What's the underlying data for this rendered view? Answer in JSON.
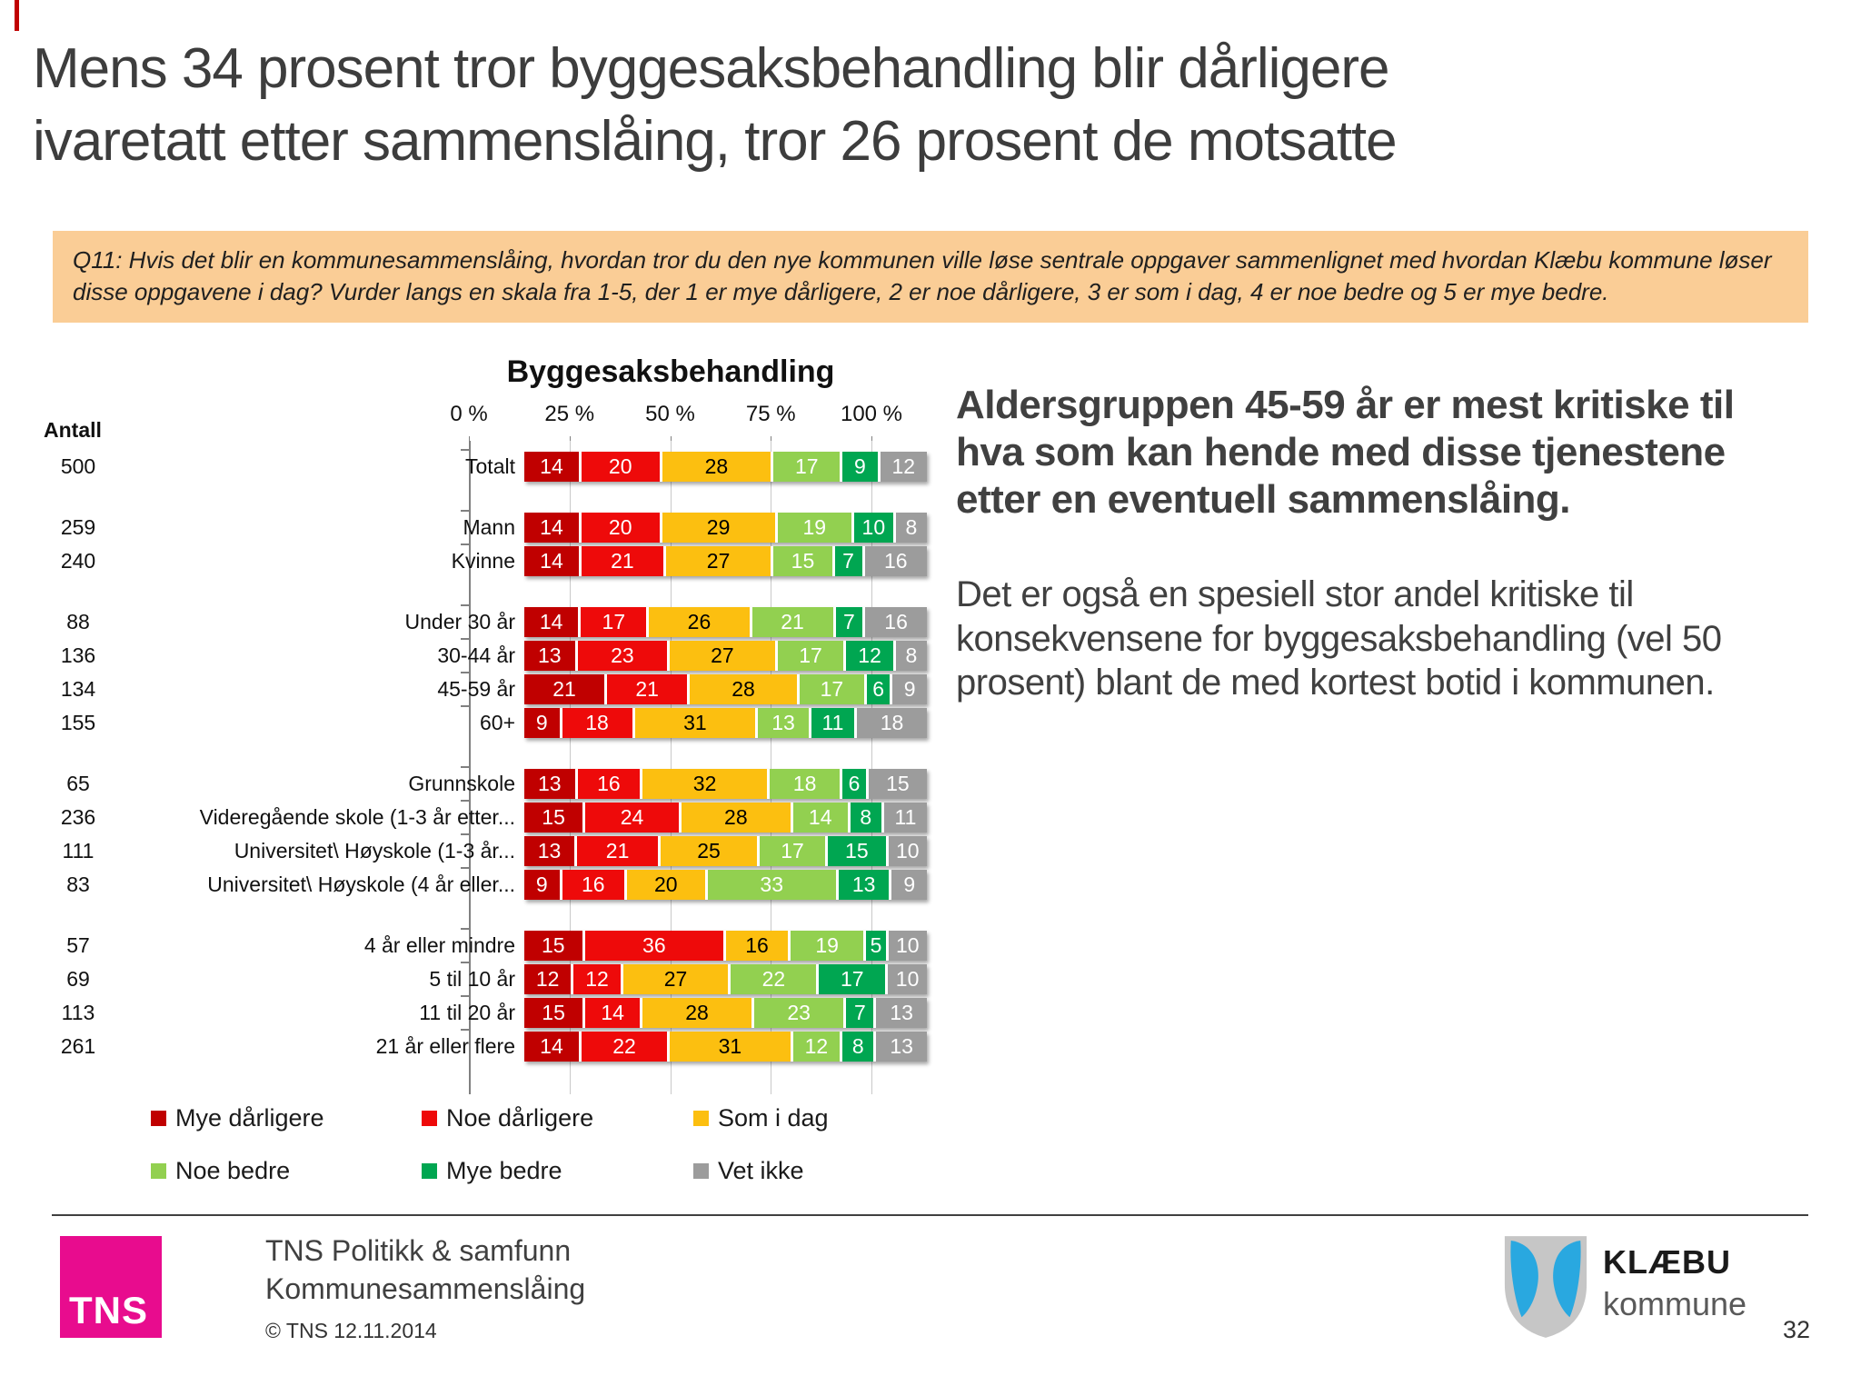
{
  "slide": {
    "title_line1": "Mens 34 prosent tror byggesaksbehandling blir dårligere",
    "title_line2": "ivaretatt etter sammenslåing, tror 26 prosent de motsatte",
    "question": "Q11: Hvis det blir en kommunesammenslåing, hvordan tror du den nye kommunen ville løse sentrale oppgaver sammenlignet med hvordan Klæbu kommune løser disse oppgavene i dag? Vurder langs en skala fra 1-5, der 1 er mye dårligere, 2 er noe dårligere, 3 er som i dag, 4 er noe bedre og 5 er mye bedre.",
    "page_number": "32"
  },
  "commentary": {
    "paragraph_bold": "Aldersgruppen 45-59 år er mest kritiske til hva som kan hende med disse tjenestene etter en eventuell sammenslåing.",
    "paragraph_regular": "Det er også en spesiell stor andel kritiske til konsekvensene for byggesaksbehandling (vel 50 prosent) blant de med kortest botid i kommunen."
  },
  "chart_data": {
    "type": "bar",
    "variant": "horizontal-stacked-100pct",
    "title": "Byggesaksbehandling",
    "antall_header": "Antall",
    "x_axis": {
      "ticks": [
        "0 %",
        "25 %",
        "50 %",
        "75 %",
        "100 %"
      ],
      "positions": [
        0,
        25,
        50,
        75,
        100
      ],
      "range": [
        0,
        100
      ],
      "gridlines": [
        25,
        50,
        75,
        100
      ]
    },
    "legend_position": "below",
    "series": [
      {
        "name": "Mye dårligere",
        "color": "#c00000",
        "text_color": "#ffffff"
      },
      {
        "name": "Noe dårligere",
        "color": "#ee0a0a",
        "text_color": "#ffffff"
      },
      {
        "name": "Som i dag",
        "color": "#fcbf10",
        "text_color": "#000000"
      },
      {
        "name": "Noe bedre",
        "color": "#92d050",
        "text_color": "#ffffff"
      },
      {
        "name": "Mye bedre",
        "color": "#00a651",
        "text_color": "#ffffff"
      },
      {
        "name": "Vet ikke",
        "color": "#9c9c9c",
        "text_color": "#ffffff"
      }
    ],
    "groups": [
      {
        "rows": [
          {
            "label": "Totalt",
            "antall": "500",
            "values": [
              14,
              20,
              28,
              17,
              9,
              12
            ]
          }
        ]
      },
      {
        "rows": [
          {
            "label": "Mann",
            "antall": "259",
            "values": [
              14,
              20,
              29,
              19,
              10,
              8
            ]
          },
          {
            "label": "Kvinne",
            "antall": "240",
            "values": [
              14,
              21,
              27,
              15,
              7,
              16
            ]
          }
        ]
      },
      {
        "rows": [
          {
            "label": "Under 30 år",
            "antall": "88",
            "values": [
              14,
              17,
              26,
              21,
              7,
              16
            ]
          },
          {
            "label": "30-44 år",
            "antall": "136",
            "values": [
              13,
              23,
              27,
              17,
              12,
              8
            ]
          },
          {
            "label": "45-59 år",
            "antall": "134",
            "values": [
              21,
              21,
              28,
              17,
              6,
              9
            ]
          },
          {
            "label": "60+",
            "antall": "155",
            "values": [
              9,
              18,
              31,
              13,
              11,
              18
            ]
          }
        ]
      },
      {
        "rows": [
          {
            "label": "Grunnskole",
            "antall": "65",
            "values": [
              13,
              16,
              32,
              18,
              6,
              15
            ]
          },
          {
            "label": "Videregående skole (1-3 år etter...",
            "antall": "236",
            "values": [
              15,
              24,
              28,
              14,
              8,
              11
            ]
          },
          {
            "label": "Universitet\\ Høyskole (1-3 år...",
            "antall": "111",
            "values": [
              13,
              21,
              25,
              17,
              15,
              10
            ]
          },
          {
            "label": "Universitet\\ Høyskole (4 år eller...",
            "antall": "83",
            "values": [
              9,
              16,
              20,
              33,
              13,
              9
            ]
          }
        ]
      },
      {
        "rows": [
          {
            "label": "4 år eller mindre",
            "antall": "57",
            "values": [
              15,
              36,
              16,
              19,
              5,
              10
            ]
          },
          {
            "label": "5 til 10 år",
            "antall": "69",
            "values": [
              12,
              12,
              27,
              22,
              17,
              10
            ]
          },
          {
            "label": "11 til 20 år",
            "antall": "113",
            "values": [
              15,
              14,
              28,
              23,
              7,
              13
            ]
          },
          {
            "label": "21 år eller flere",
            "antall": "261",
            "values": [
              14,
              22,
              31,
              12,
              8,
              13
            ]
          }
        ]
      }
    ]
  },
  "footer": {
    "tns_logo_text": "TNS",
    "line1": "TNS Politikk & samfunn",
    "line2": "Kommunesammenslåing",
    "copyright": "© TNS 12.11.2014",
    "klaebu_line1": "KLÆBU",
    "klaebu_line2": "kommune"
  }
}
